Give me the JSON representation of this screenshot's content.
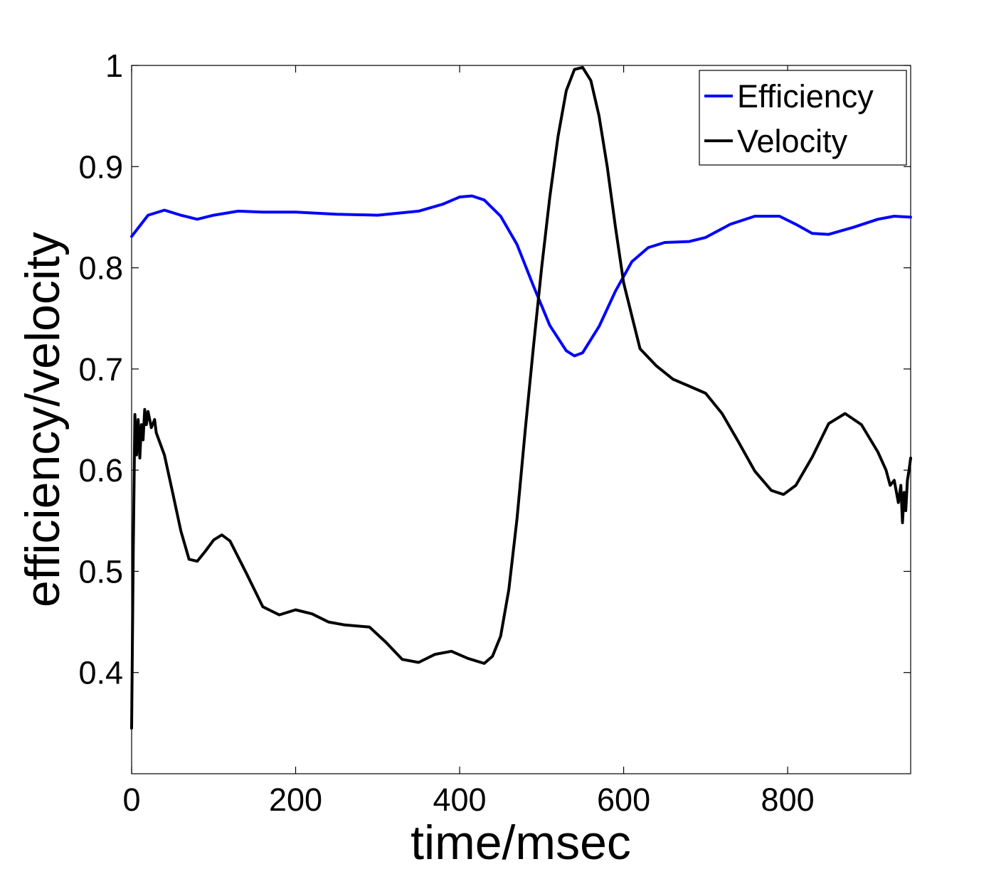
{
  "chart_data": {
    "type": "line",
    "title": "",
    "xlabel": "time/msec",
    "ylabel": "efficiency/velocity",
    "xlim": [
      0,
      950
    ],
    "ylim": [
      0.3,
      1.0
    ],
    "xticks": [
      0,
      200,
      400,
      600,
      800
    ],
    "xtick_labels": [
      "0",
      "200",
      "400",
      "600",
      "800"
    ],
    "yticks": [
      0.4,
      0.5,
      0.6,
      0.7,
      0.8,
      0.9,
      1.0
    ],
    "ytick_labels": [
      "0.4",
      "0.5",
      "0.6",
      "0.7",
      "0.8",
      "0.9",
      "1"
    ],
    "grid": false,
    "legend_position": "top-right",
    "series": [
      {
        "name": "Efficiency",
        "color": "#0000ff",
        "x": [
          0,
          20,
          40,
          60,
          80,
          100,
          130,
          160,
          200,
          250,
          300,
          350,
          380,
          400,
          415,
          430,
          450,
          470,
          490,
          510,
          530,
          540,
          550,
          570,
          590,
          610,
          630,
          650,
          680,
          700,
          730,
          760,
          790,
          810,
          830,
          850,
          880,
          910,
          930,
          950
        ],
        "y": [
          0.831,
          0.852,
          0.857,
          0.852,
          0.848,
          0.852,
          0.856,
          0.855,
          0.855,
          0.853,
          0.852,
          0.856,
          0.863,
          0.87,
          0.871,
          0.867,
          0.851,
          0.823,
          0.782,
          0.743,
          0.718,
          0.713,
          0.716,
          0.742,
          0.777,
          0.806,
          0.82,
          0.825,
          0.826,
          0.83,
          0.843,
          0.851,
          0.851,
          0.843,
          0.834,
          0.833,
          0.84,
          0.848,
          0.851,
          0.85
        ]
      },
      {
        "name": "Velocity",
        "color": "#000000",
        "x": [
          0,
          2,
          4,
          6,
          8,
          10,
          12,
          14,
          16,
          18,
          20,
          24,
          28,
          30,
          40,
          50,
          60,
          70,
          80,
          90,
          100,
          110,
          120,
          140,
          160,
          180,
          200,
          220,
          240,
          260,
          290,
          310,
          330,
          350,
          370,
          390,
          410,
          430,
          440,
          450,
          460,
          470,
          480,
          490,
          500,
          510,
          520,
          530,
          540,
          550,
          560,
          570,
          580,
          590,
          600,
          620,
          640,
          660,
          680,
          700,
          720,
          740,
          760,
          780,
          795,
          810,
          830,
          850,
          870,
          890,
          910,
          920,
          925,
          930,
          935,
          938,
          940,
          942,
          944,
          946,
          948,
          950
        ],
        "y": [
          0.345,
          0.52,
          0.655,
          0.615,
          0.65,
          0.612,
          0.645,
          0.63,
          0.66,
          0.645,
          0.658,
          0.642,
          0.65,
          0.637,
          0.615,
          0.578,
          0.54,
          0.512,
          0.51,
          0.52,
          0.531,
          0.536,
          0.53,
          0.498,
          0.465,
          0.457,
          0.462,
          0.458,
          0.45,
          0.447,
          0.445,
          0.43,
          0.413,
          0.41,
          0.418,
          0.421,
          0.414,
          0.409,
          0.416,
          0.436,
          0.482,
          0.552,
          0.64,
          0.722,
          0.8,
          0.87,
          0.93,
          0.975,
          0.996,
          0.998,
          0.985,
          0.95,
          0.9,
          0.84,
          0.785,
          0.72,
          0.703,
          0.69,
          0.683,
          0.676,
          0.656,
          0.628,
          0.599,
          0.58,
          0.576,
          0.585,
          0.613,
          0.646,
          0.656,
          0.645,
          0.618,
          0.6,
          0.585,
          0.59,
          0.568,
          0.585,
          0.548,
          0.578,
          0.56,
          0.59,
          0.6,
          0.612
        ]
      }
    ]
  }
}
